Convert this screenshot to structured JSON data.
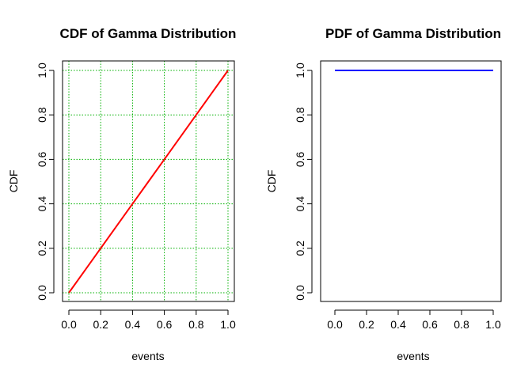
{
  "chart_data": [
    {
      "type": "line",
      "title": "CDF of Gamma Distribution",
      "xlabel": "events",
      "ylabel": "CDF",
      "xlim": [
        0,
        1
      ],
      "ylim": [
        0,
        1
      ],
      "x_ticks": [
        "0.0",
        "0.2",
        "0.4",
        "0.6",
        "0.8",
        "1.0"
      ],
      "y_ticks": [
        "0.0",
        "0.2",
        "0.4",
        "0.6",
        "0.8",
        "1.0"
      ],
      "grid": true,
      "grid_color": "#00b000",
      "series": [
        {
          "color": "#ff0000",
          "x": [
            0.0,
            0.1,
            0.2,
            0.3,
            0.4,
            0.5,
            0.6,
            0.7,
            0.8,
            0.9,
            1.0
          ],
          "y": [
            0.0,
            0.1,
            0.2,
            0.3,
            0.4,
            0.5,
            0.6,
            0.7,
            0.8,
            0.9,
            1.0
          ]
        }
      ]
    },
    {
      "type": "line",
      "title": "PDF of Gamma Distribution",
      "xlabel": "events",
      "ylabel": "CDF",
      "xlim": [
        0,
        1
      ],
      "ylim": [
        0,
        1
      ],
      "x_ticks": [
        "0.0",
        "0.2",
        "0.4",
        "0.6",
        "0.8",
        "1.0"
      ],
      "y_ticks": [
        "0.0",
        "0.2",
        "0.4",
        "0.6",
        "0.8",
        "1.0"
      ],
      "grid": false,
      "series": [
        {
          "color": "#0000ff",
          "x": [
            0.0,
            1.0
          ],
          "y": [
            1.0,
            1.0
          ]
        }
      ]
    }
  ]
}
